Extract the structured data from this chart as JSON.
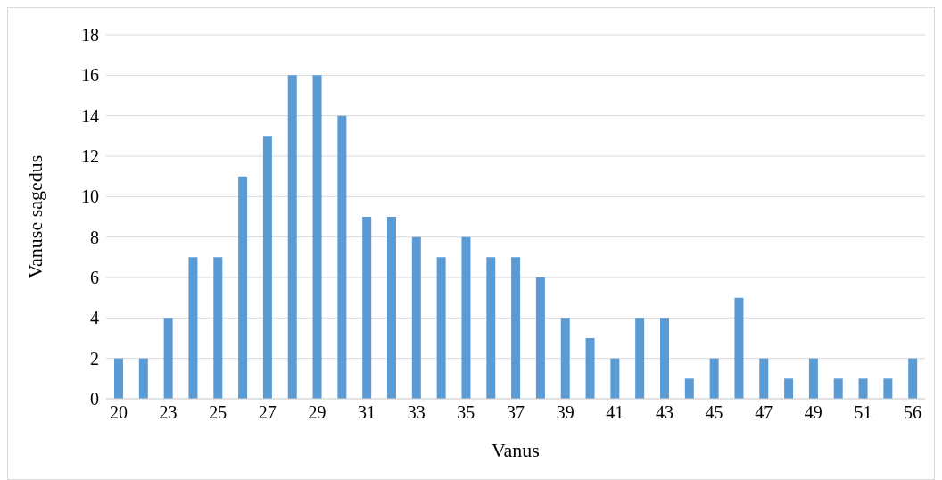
{
  "chart_data": {
    "type": "bar",
    "xlabel": "Vanus",
    "ylabel": "Vanuse sagedus",
    "categories": [
      "20",
      null,
      "23",
      null,
      "25",
      null,
      "27",
      null,
      "29",
      null,
      "31",
      null,
      "33",
      null,
      "35",
      null,
      "37",
      null,
      "39",
      null,
      "41",
      null,
      "43",
      null,
      "45",
      null,
      "47",
      null,
      "49",
      null,
      "51",
      null,
      "56"
    ],
    "values": [
      2,
      2,
      4,
      7,
      7,
      11,
      13,
      16,
      16,
      14,
      9,
      9,
      8,
      7,
      8,
      7,
      7,
      6,
      4,
      3,
      2,
      4,
      4,
      1,
      2,
      5,
      2,
      1,
      2,
      1,
      1,
      1,
      2
    ],
    "color": "#5b9bd5",
    "ylim": [
      0,
      18
    ],
    "yticks": [
      0,
      2,
      4,
      6,
      8,
      10,
      12,
      14,
      16,
      18
    ],
    "grid": "y"
  }
}
